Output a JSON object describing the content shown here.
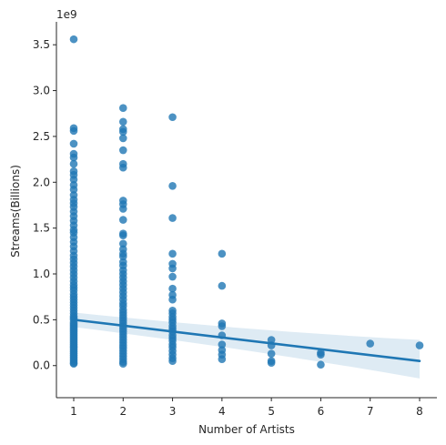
{
  "chart_data": {
    "type": "scatter",
    "title": "",
    "xlabel": "Number of Artists",
    "ylabel": "Streams(Billions)",
    "y_offset_label": "1e9",
    "xlim": [
      0.65,
      8.35
    ],
    "ylim": [
      -0.35,
      3.75
    ],
    "x_ticks": [
      1,
      2,
      3,
      4,
      5,
      6,
      7,
      8
    ],
    "y_ticks": [
      0.0,
      0.5,
      1.0,
      1.5,
      2.0,
      2.5,
      3.0,
      3.5
    ],
    "y_tick_labels": [
      "0.0",
      "0.5",
      "1.0",
      "1.5",
      "2.0",
      "2.5",
      "3.0",
      "3.5"
    ],
    "grid": false,
    "point_color": "#1f77b4",
    "line_color": "#1f77b4",
    "band_color": "#1f77b4",
    "regression": {
      "x": [
        1,
        8
      ],
      "y": [
        0.5,
        0.05
      ],
      "ci_upper": [
        0.58,
        0.28
      ],
      "ci_lower": [
        0.42,
        -0.14
      ]
    },
    "points": [
      {
        "x": 1,
        "ys": [
          3.56,
          2.59,
          2.56,
          2.42,
          2.31,
          2.27,
          2.2,
          2.12,
          2.08,
          2.03,
          1.97,
          1.92,
          1.86,
          1.81,
          1.77,
          1.73,
          1.68,
          1.63,
          1.58,
          1.53,
          1.48,
          1.45,
          1.4,
          1.35,
          1.3,
          1.25,
          1.2,
          1.16,
          1.12,
          1.08,
          1.04,
          1.0,
          0.96,
          0.92,
          0.88,
          0.85,
          0.82,
          0.78,
          0.75,
          0.72,
          0.69,
          0.66,
          0.63,
          0.6,
          0.57,
          0.54,
          0.52,
          0.5,
          0.47,
          0.45,
          0.43,
          0.41,
          0.39,
          0.37,
          0.35,
          0.33,
          0.31,
          0.29,
          0.27,
          0.25,
          0.23,
          0.21,
          0.19,
          0.17,
          0.15,
          0.13,
          0.11,
          0.09,
          0.07,
          0.05,
          0.03,
          0.02
        ]
      },
      {
        "x": 2,
        "ys": [
          2.81,
          2.66,
          2.58,
          2.55,
          2.48,
          2.35,
          2.2,
          2.16,
          1.8,
          1.76,
          1.71,
          1.59,
          1.44,
          1.42,
          1.33,
          1.27,
          1.22,
          1.19,
          1.13,
          1.09,
          1.04,
          1.0,
          0.96,
          0.92,
          0.88,
          0.84,
          0.8,
          0.76,
          0.72,
          0.68,
          0.65,
          0.61,
          0.58,
          0.55,
          0.52,
          0.49,
          0.46,
          0.43,
          0.4,
          0.37,
          0.34,
          0.31,
          0.28,
          0.25,
          0.22,
          0.19,
          0.16,
          0.13,
          0.1,
          0.07,
          0.04,
          0.02
        ]
      },
      {
        "x": 3,
        "ys": [
          2.71,
          1.96,
          1.61,
          1.22,
          1.11,
          1.06,
          0.97,
          0.84,
          0.77,
          0.72,
          0.6,
          0.57,
          0.53,
          0.5,
          0.47,
          0.43,
          0.4,
          0.37,
          0.33,
          0.3,
          0.27,
          0.23,
          0.2,
          0.16,
          0.12,
          0.08,
          0.05
        ]
      },
      {
        "x": 4,
        "ys": [
          1.22,
          0.87,
          0.46,
          0.43,
          0.33,
          0.23,
          0.17,
          0.12,
          0.07
        ]
      },
      {
        "x": 5,
        "ys": [
          0.28,
          0.22,
          0.13,
          0.05,
          0.03
        ]
      },
      {
        "x": 6,
        "ys": [
          0.14,
          0.12,
          0.01
        ]
      },
      {
        "x": 7,
        "ys": [
          0.24
        ]
      },
      {
        "x": 8,
        "ys": [
          0.22
        ]
      }
    ]
  }
}
